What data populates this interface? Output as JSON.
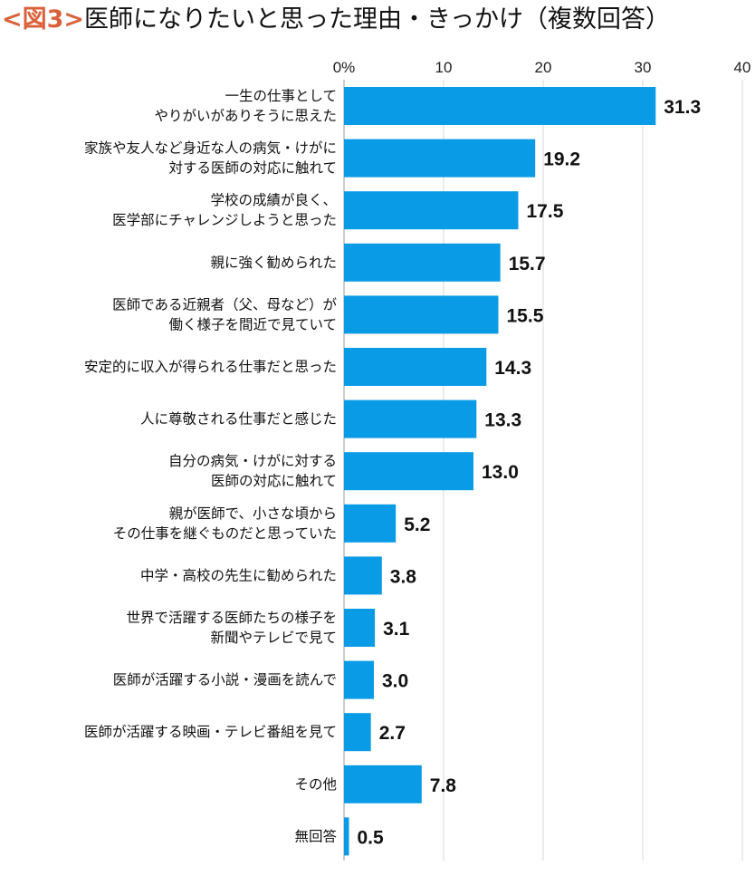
{
  "title": {
    "tag": "<図3>",
    "text": "医師になりたいと思った理由・きっかけ（複数回答）"
  },
  "colors": {
    "bar": "#0a9be6",
    "tag": "#d9623b",
    "grid": "#d8d8d8"
  },
  "chart_data": {
    "type": "bar",
    "orientation": "horizontal",
    "xlim": [
      0,
      40
    ],
    "xticks": [
      "0%",
      "10",
      "20",
      "30",
      "40"
    ],
    "xtick_values": [
      0,
      10,
      20,
      30,
      40
    ],
    "grid": true,
    "categories": [
      [
        "一生の仕事として",
        "やりがいがありそうに思えた"
      ],
      [
        "家族や友人など身近な人の病気・けがに",
        "対する医師の対応に触れて"
      ],
      [
        "学校の成績が良く、",
        "医学部にチャレンジしようと思った"
      ],
      [
        "親に強く勧められた"
      ],
      [
        "医師である近親者（父、母など）が",
        "働く様子を間近で見ていて"
      ],
      [
        "安定的に収入が得られる仕事だと思った"
      ],
      [
        "人に尊敬される仕事だと感じた"
      ],
      [
        "自分の病気・けがに対する",
        "医師の対応に触れて"
      ],
      [
        "親が医師で、小さな頃から",
        "その仕事を継ぐものだと思っていた"
      ],
      [
        "中学・高校の先生に勧められた"
      ],
      [
        "世界で活躍する医師たちの様子を",
        "新聞やテレビで見て"
      ],
      [
        "医師が活躍する小説・漫画を読んで"
      ],
      [
        "医師が活躍する映画・テレビ番組を見て"
      ],
      [
        "その他"
      ],
      [
        "無回答"
      ]
    ],
    "values": [
      31.3,
      19.2,
      17.5,
      15.7,
      15.5,
      14.3,
      13.3,
      13.0,
      5.2,
      3.8,
      3.1,
      3.0,
      2.7,
      7.8,
      0.5
    ],
    "labels": [
      "31.3",
      "19.2",
      "17.5",
      "15.7",
      "15.5",
      "14.3",
      "13.3",
      "13.0",
      "5.2",
      "3.8",
      "3.1",
      "3.0",
      "2.7",
      "7.8",
      "0.5"
    ]
  }
}
